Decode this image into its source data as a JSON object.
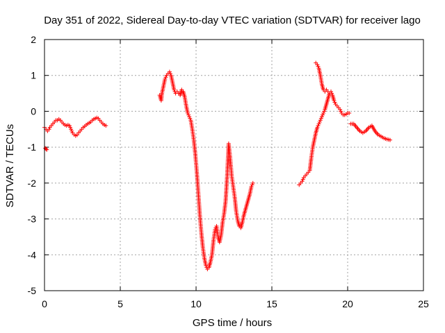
{
  "chart_data": {
    "type": "scatter",
    "title": "Day 351 of 2022, Sidereal Day-to-day VTEC variation (SDTVAR) for receiver lago",
    "xlabel": "GPS time / hours",
    "ylabel": "SDTVAR / TECUs",
    "xlim": [
      0,
      25
    ],
    "ylim": [
      -5,
      2
    ],
    "xticks": [
      "0",
      "5",
      "10",
      "15",
      "20",
      "25"
    ],
    "yticks": [
      "-5",
      "-4",
      "-3",
      "-2",
      "-1",
      "0",
      "1",
      "2"
    ],
    "grid": true,
    "marker": "plus",
    "color": "#ff0000",
    "segments": [
      {
        "x": [
          0.0,
          0.1,
          0.2,
          0.3,
          0.35,
          0.45,
          0.55,
          0.65,
          0.75,
          0.85,
          0.95,
          1.05,
          1.15,
          1.25,
          1.35,
          1.45,
          1.55,
          1.65,
          1.75,
          1.85,
          1.95,
          2.05,
          2.15,
          2.25,
          2.35,
          2.45,
          2.55,
          2.65,
          2.75,
          2.85,
          2.95,
          3.05,
          3.15,
          3.25,
          3.35,
          3.45,
          3.55,
          3.65,
          3.75,
          3.85,
          3.95,
          4.05
        ],
        "y": [
          -0.45,
          -0.5,
          -0.55,
          -0.5,
          -0.45,
          -0.4,
          -0.35,
          -0.3,
          -0.25,
          -0.25,
          -0.22,
          -0.25,
          -0.3,
          -0.35,
          -0.38,
          -0.4,
          -0.38,
          -0.4,
          -0.5,
          -0.6,
          -0.65,
          -0.68,
          -0.66,
          -0.6,
          -0.55,
          -0.5,
          -0.45,
          -0.42,
          -0.38,
          -0.35,
          -0.32,
          -0.3,
          -0.25,
          -0.22,
          -0.2,
          -0.18,
          -0.2,
          -0.25,
          -0.3,
          -0.35,
          -0.38,
          -0.4
        ]
      },
      {
        "x": [
          0.05,
          0.1,
          0.15
        ],
        "y": [
          -1.03,
          -1.05,
          -1.07
        ]
      },
      {
        "x": [
          7.6,
          7.7,
          7.75,
          7.85,
          7.95,
          8.05,
          8.15,
          8.25,
          8.35,
          8.45,
          8.55,
          8.65,
          8.75,
          8.85,
          8.95,
          9.05,
          9.15,
          9.25,
          9.35,
          9.45,
          9.55,
          9.65,
          9.75,
          9.85,
          9.95,
          10.05,
          10.15,
          10.25,
          10.35,
          10.45,
          10.55,
          10.65,
          10.75,
          10.85,
          10.95,
          11.05,
          11.15,
          11.25,
          11.35,
          11.45,
          11.55,
          11.65,
          11.75,
          11.85,
          11.95,
          12.05,
          12.15,
          12.25,
          12.35,
          12.45,
          12.55,
          12.65,
          12.75,
          12.85,
          12.95,
          13.05,
          13.15,
          13.25,
          13.35,
          13.45,
          13.55,
          13.65,
          13.75
        ],
        "y": [
          0.45,
          0.3,
          0.5,
          0.7,
          0.9,
          1.0,
          1.05,
          1.1,
          1.0,
          0.8,
          0.6,
          0.5,
          0.55,
          0.5,
          0.45,
          0.6,
          0.55,
          0.4,
          0.15,
          -0.05,
          -0.15,
          -0.25,
          -0.5,
          -0.8,
          -1.2,
          -1.7,
          -2.3,
          -2.9,
          -3.4,
          -3.8,
          -4.1,
          -4.3,
          -4.4,
          -4.35,
          -4.2,
          -4.0,
          -3.6,
          -3.3,
          -3.2,
          -3.5,
          -3.65,
          -3.45,
          -3.1,
          -2.85,
          -2.5,
          -1.8,
          -0.9,
          -1.3,
          -1.8,
          -2.1,
          -2.4,
          -2.8,
          -3.05,
          -3.2,
          -3.25,
          -3.1,
          -2.9,
          -2.75,
          -2.6,
          -2.45,
          -2.3,
          -2.1,
          -2.0
        ]
      },
      {
        "x": [
          16.8,
          16.9,
          17.0,
          17.1,
          17.2,
          17.3,
          17.4,
          17.5,
          17.6,
          17.7,
          17.8,
          17.9,
          18.0,
          18.1,
          18.2,
          18.3,
          18.4,
          18.5,
          18.6,
          18.7,
          18.8,
          18.9,
          19.0,
          19.1,
          19.2,
          19.3,
          19.4,
          19.5,
          19.6,
          19.7,
          19.8,
          19.9,
          20.0,
          20.1
        ],
        "y": [
          -2.05,
          -2.0,
          -1.95,
          -1.85,
          -1.8,
          -1.75,
          -1.7,
          -1.65,
          -1.3,
          -1.0,
          -0.8,
          -0.6,
          -0.45,
          -0.35,
          -0.25,
          -0.15,
          -0.05,
          0.05,
          0.2,
          0.35,
          0.5,
          0.55,
          0.45,
          0.3,
          0.2,
          0.15,
          0.1,
          0.05,
          -0.05,
          -0.1,
          -0.1,
          -0.08,
          -0.05,
          -0.05
        ]
      },
      {
        "x": [
          17.9,
          18.0,
          18.1,
          18.2,
          18.3,
          18.4,
          18.5,
          18.6,
          18.7
        ],
        "y": [
          1.35,
          1.3,
          1.2,
          1.0,
          0.75,
          0.6,
          0.55,
          0.6,
          0.55
        ]
      },
      {
        "x": [
          20.2,
          20.4,
          20.6,
          20.8,
          21.0,
          21.2,
          21.4,
          21.6,
          21.8,
          22.0,
          22.2,
          22.4,
          22.6,
          22.8
        ],
        "y": [
          -0.35,
          -0.35,
          -0.45,
          -0.55,
          -0.6,
          -0.55,
          -0.45,
          -0.4,
          -0.55,
          -0.65,
          -0.7,
          -0.75,
          -0.78,
          -0.8
        ]
      }
    ]
  }
}
